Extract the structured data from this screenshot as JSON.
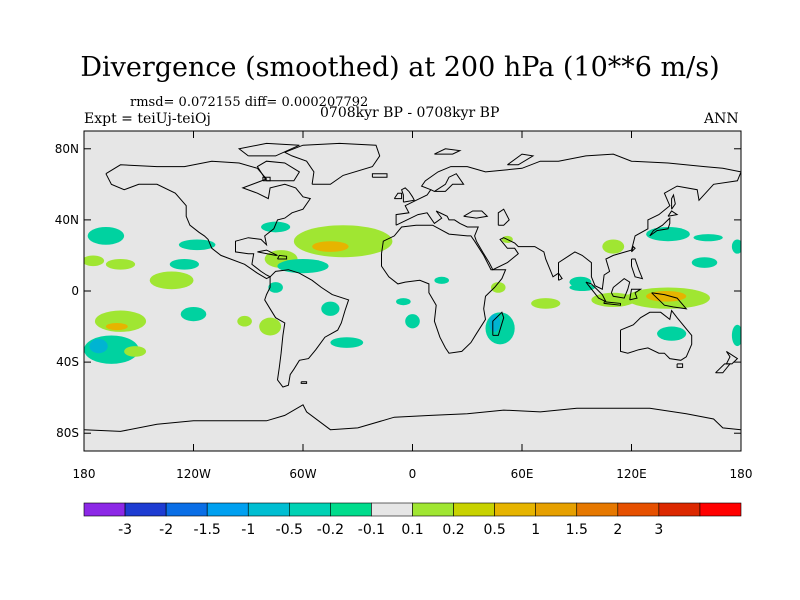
{
  "title": "Divergence (smoothed) at 200 hPa (10**6 m/s)",
  "stats": "rmsd= 0.072155  diff= 0.000207792",
  "experiment": "Expt = teiUj-teiOj",
  "period": "0708kyr BP - 0708kyr BP",
  "season": "ANN",
  "map": {
    "background_color": "#e6e6e6",
    "coast_color": "#000000",
    "lat_ticks": [
      {
        "value": 80,
        "label": "80N"
      },
      {
        "value": 40,
        "label": "40N"
      },
      {
        "value": 0,
        "label": "0"
      },
      {
        "value": -40,
        "label": "40S"
      },
      {
        "value": -80,
        "label": "80S"
      }
    ],
    "lon_ticks": [
      {
        "value": -180,
        "label": "180"
      },
      {
        "value": -120,
        "label": "120W"
      },
      {
        "value": -60,
        "label": "60W"
      },
      {
        "value": 0,
        "label": "0"
      },
      {
        "value": 60,
        "label": "60E"
      },
      {
        "value": 120,
        "label": "120E"
      },
      {
        "value": 180,
        "label": "180"
      }
    ],
    "anomalies": [
      {
        "lon": -168,
        "lat": 31,
        "rx": 10,
        "ry": 5,
        "color": "#00d2a0"
      },
      {
        "lon": -175,
        "lat": 17,
        "rx": 6,
        "ry": 3,
        "color": "#a0e632"
      },
      {
        "lon": -160,
        "lat": 15,
        "rx": 8,
        "ry": 3,
        "color": "#a0e632"
      },
      {
        "lon": -132,
        "lat": 6,
        "rx": 12,
        "ry": 5,
        "color": "#a0e632"
      },
      {
        "lon": -118,
        "lat": 26,
        "rx": 10,
        "ry": 3,
        "color": "#00d2a0"
      },
      {
        "lon": -125,
        "lat": 15,
        "rx": 8,
        "ry": 3,
        "color": "#00d2a0"
      },
      {
        "lon": -160,
        "lat": -17,
        "rx": 14,
        "ry": 6,
        "color": "#a0e632"
      },
      {
        "lon": -162,
        "lat": -20,
        "rx": 6,
        "ry": 2,
        "color": "#e6b400"
      },
      {
        "lon": -165,
        "lat": -33,
        "rx": 15,
        "ry": 8,
        "color": "#00d2a0"
      },
      {
        "lon": -172,
        "lat": -31,
        "rx": 5,
        "ry": 4,
        "color": "#00b4d2"
      },
      {
        "lon": -152,
        "lat": -34,
        "rx": 6,
        "ry": 3,
        "color": "#a0e632"
      },
      {
        "lon": -120,
        "lat": -13,
        "rx": 7,
        "ry": 4,
        "color": "#00d2a0"
      },
      {
        "lon": -92,
        "lat": -17,
        "rx": 4,
        "ry": 3,
        "color": "#a0e632"
      },
      {
        "lon": -75,
        "lat": 36,
        "rx": 8,
        "ry": 3,
        "color": "#00d2a0"
      },
      {
        "lon": -38,
        "lat": 28,
        "rx": 27,
        "ry": 9,
        "color": "#a0e632"
      },
      {
        "lon": -45,
        "lat": 25,
        "rx": 10,
        "ry": 3,
        "color": "#e6b400"
      },
      {
        "lon": -72,
        "lat": 18,
        "rx": 9,
        "ry": 5,
        "color": "#a0e632"
      },
      {
        "lon": -60,
        "lat": 14,
        "rx": 14,
        "ry": 4,
        "color": "#00d2a0"
      },
      {
        "lon": -75,
        "lat": 2,
        "rx": 4,
        "ry": 3,
        "color": "#00d2a0"
      },
      {
        "lon": -78,
        "lat": -20,
        "rx": 6,
        "ry": 5,
        "color": "#a0e632"
      },
      {
        "lon": -45,
        "lat": -10,
        "rx": 5,
        "ry": 4,
        "color": "#00d2a0"
      },
      {
        "lon": -36,
        "lat": -29,
        "rx": 9,
        "ry": 3,
        "color": "#00d2a0"
      },
      {
        "lon": -5,
        "lat": -6,
        "rx": 4,
        "ry": 2,
        "color": "#00d2a0"
      },
      {
        "lon": 0,
        "lat": -17,
        "rx": 4,
        "ry": 4,
        "color": "#00d2a0"
      },
      {
        "lon": 16,
        "lat": 6,
        "rx": 4,
        "ry": 2,
        "color": "#00d2a0"
      },
      {
        "lon": 52,
        "lat": 29,
        "rx": 3,
        "ry": 2,
        "color": "#a0e632"
      },
      {
        "lon": 47,
        "lat": 2,
        "rx": 4,
        "ry": 3,
        "color": "#a0e632"
      },
      {
        "lon": 73,
        "lat": -7,
        "rx": 8,
        "ry": 3,
        "color": "#a0e632"
      },
      {
        "lon": 92,
        "lat": 5,
        "rx": 6,
        "ry": 3,
        "color": "#00d2a0"
      },
      {
        "lon": 93,
        "lat": 2,
        "rx": 7,
        "ry": 2,
        "color": "#00d2a0"
      },
      {
        "lon": 48,
        "lat": -21,
        "rx": 8,
        "ry": 9,
        "color": "#00d2a0"
      },
      {
        "lon": 45,
        "lat": -18,
        "rx": 3,
        "ry": 5,
        "color": "#00b4d2"
      },
      {
        "lon": 110,
        "lat": -5,
        "rx": 12,
        "ry": 4,
        "color": "#a0e632"
      },
      {
        "lon": 140,
        "lat": -4,
        "rx": 23,
        "ry": 6,
        "color": "#a0e632"
      },
      {
        "lon": 139,
        "lat": -3,
        "rx": 11,
        "ry": 3,
        "color": "#e6b400"
      },
      {
        "lon": 142,
        "lat": -24,
        "rx": 8,
        "ry": 4,
        "color": "#00d2a0"
      },
      {
        "lon": 110,
        "lat": 25,
        "rx": 6,
        "ry": 4,
        "color": "#a0e632"
      },
      {
        "lon": 140,
        "lat": 32,
        "rx": 12,
        "ry": 4,
        "color": "#00d2a0"
      },
      {
        "lon": 162,
        "lat": 30,
        "rx": 8,
        "ry": 2,
        "color": "#00d2a0"
      },
      {
        "lon": 160,
        "lat": 16,
        "rx": 7,
        "ry": 3,
        "color": "#00d2a0"
      },
      {
        "lon": 178,
        "lat": 25,
        "rx": 3,
        "ry": 4,
        "color": "#00d2a0"
      },
      {
        "lon": 178,
        "lat": -25,
        "rx": 3,
        "ry": 6,
        "color": "#00d2a0"
      }
    ]
  },
  "colorbar": {
    "colors": [
      "#8c28e6",
      "#1e3cd2",
      "#0a6ee6",
      "#00a0f0",
      "#00bed2",
      "#00d2b4",
      "#00dc8c",
      "#e6e6e6",
      "#a0e632",
      "#c8d200",
      "#e6b400",
      "#e6a000",
      "#e67800",
      "#e65000",
      "#dc2800",
      "#ff0000"
    ],
    "labels": [
      "-3",
      "-2",
      "-1.5",
      "-1",
      "-0.5",
      "-0.2",
      "-0.1",
      "0.1",
      "0.2",
      "0.5",
      "1",
      "1.5",
      "2",
      "3"
    ]
  }
}
